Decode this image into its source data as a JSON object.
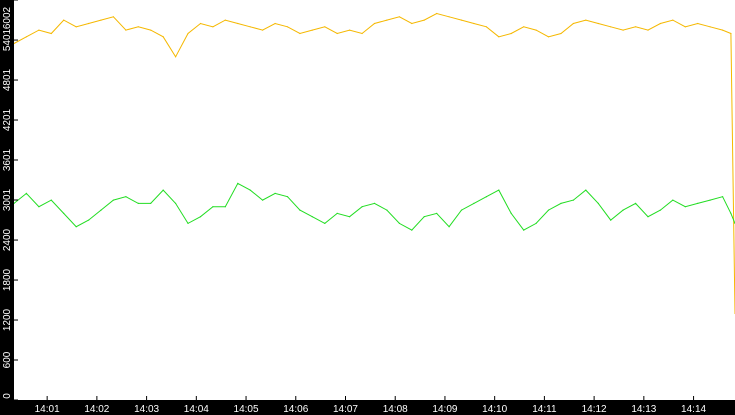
{
  "chart_data": {
    "type": "line",
    "title": "",
    "xlabel": "",
    "ylabel": "",
    "background": "#ffffff",
    "axis_color": "#000000",
    "label_color": "#ffffff",
    "x_range": [
      "14:00:20",
      "14:14:50"
    ],
    "ylim": [
      0,
      6002
    ],
    "y_ticks": [
      {
        "value": 0,
        "label": "0"
      },
      {
        "value": 600,
        "label": "600"
      },
      {
        "value": 1200,
        "label": "1200"
      },
      {
        "value": 1800,
        "label": "1800"
      },
      {
        "value": 2400,
        "label": "2400"
      },
      {
        "value": 3001,
        "label": "3001"
      },
      {
        "value": 3601,
        "label": "3601"
      },
      {
        "value": 4201,
        "label": "4201"
      },
      {
        "value": 4801,
        "label": "4801"
      },
      {
        "value": 5401,
        "label": "5401"
      },
      {
        "value": 6002,
        "label": "6002"
      }
    ],
    "x_ticks": [
      {
        "value": "14:01",
        "label": "14:01"
      },
      {
        "value": "14:02",
        "label": "14:02"
      },
      {
        "value": "14:03",
        "label": "14:03"
      },
      {
        "value": "14:04",
        "label": "14:04"
      },
      {
        "value": "14:05",
        "label": "14:05"
      },
      {
        "value": "14:06",
        "label": "14:06"
      },
      {
        "value": "14:07",
        "label": "14:07"
      },
      {
        "value": "14:08",
        "label": "14:08"
      },
      {
        "value": "14:09",
        "label": "14:09"
      },
      {
        "value": "14:10",
        "label": "14:10"
      },
      {
        "value": "14:11",
        "label": "14:11"
      },
      {
        "value": "14:12",
        "label": "14:12"
      },
      {
        "value": "14:13",
        "label": "14:13"
      },
      {
        "value": "14:14",
        "label": "14:14"
      }
    ],
    "series": [
      {
        "color": "#f5b800",
        "points": [
          [
            "14:00:20",
            5350
          ],
          [
            "14:00:35",
            5450
          ],
          [
            "14:00:50",
            5550
          ],
          [
            "14:01:05",
            5500
          ],
          [
            "14:01:20",
            5700
          ],
          [
            "14:01:35",
            5600
          ],
          [
            "14:01:50",
            5650
          ],
          [
            "14:02:05",
            5700
          ],
          [
            "14:02:20",
            5750
          ],
          [
            "14:02:35",
            5550
          ],
          [
            "14:02:50",
            5600
          ],
          [
            "14:03:05",
            5550
          ],
          [
            "14:03:20",
            5450
          ],
          [
            "14:03:35",
            5150
          ],
          [
            "14:03:50",
            5500
          ],
          [
            "14:04:05",
            5650
          ],
          [
            "14:04:20",
            5600
          ],
          [
            "14:04:35",
            5700
          ],
          [
            "14:04:50",
            5650
          ],
          [
            "14:05:05",
            5600
          ],
          [
            "14:05:20",
            5550
          ],
          [
            "14:05:35",
            5650
          ],
          [
            "14:05:50",
            5600
          ],
          [
            "14:06:05",
            5500
          ],
          [
            "14:06:20",
            5550
          ],
          [
            "14:06:35",
            5600
          ],
          [
            "14:06:50",
            5500
          ],
          [
            "14:07:05",
            5550
          ],
          [
            "14:07:20",
            5500
          ],
          [
            "14:07:35",
            5650
          ],
          [
            "14:07:50",
            5700
          ],
          [
            "14:08:05",
            5750
          ],
          [
            "14:08:20",
            5650
          ],
          [
            "14:08:35",
            5700
          ],
          [
            "14:08:50",
            5800
          ],
          [
            "14:09:05",
            5750
          ],
          [
            "14:09:20",
            5700
          ],
          [
            "14:09:35",
            5650
          ],
          [
            "14:09:50",
            5600
          ],
          [
            "14:10:05",
            5450
          ],
          [
            "14:10:20",
            5500
          ],
          [
            "14:10:35",
            5600
          ],
          [
            "14:10:50",
            5550
          ],
          [
            "14:11:05",
            5450
          ],
          [
            "14:11:20",
            5500
          ],
          [
            "14:11:35",
            5650
          ],
          [
            "14:11:50",
            5700
          ],
          [
            "14:12:05",
            5650
          ],
          [
            "14:12:20",
            5600
          ],
          [
            "14:12:35",
            5550
          ],
          [
            "14:12:50",
            5600
          ],
          [
            "14:13:05",
            5550
          ],
          [
            "14:13:20",
            5650
          ],
          [
            "14:13:35",
            5700
          ],
          [
            "14:13:50",
            5600
          ],
          [
            "14:14:05",
            5650
          ],
          [
            "14:14:20",
            5600
          ],
          [
            "14:14:35",
            5550
          ],
          [
            "14:14:45",
            5500
          ],
          [
            "14:14:50",
            1300
          ]
        ]
      },
      {
        "color": "#22dd22",
        "points": [
          [
            "14:00:20",
            2950
          ],
          [
            "14:00:35",
            3100
          ],
          [
            "14:00:50",
            2900
          ],
          [
            "14:01:05",
            3000
          ],
          [
            "14:01:20",
            2800
          ],
          [
            "14:01:35",
            2600
          ],
          [
            "14:01:50",
            2700
          ],
          [
            "14:02:05",
            2850
          ],
          [
            "14:02:20",
            3000
          ],
          [
            "14:02:35",
            3050
          ],
          [
            "14:02:50",
            2950
          ],
          [
            "14:03:05",
            2950
          ],
          [
            "14:03:20",
            3150
          ],
          [
            "14:03:35",
            2950
          ],
          [
            "14:03:50",
            2650
          ],
          [
            "14:04:05",
            2750
          ],
          [
            "14:04:20",
            2900
          ],
          [
            "14:04:35",
            2900
          ],
          [
            "14:04:50",
            3250
          ],
          [
            "14:05:05",
            3150
          ],
          [
            "14:05:20",
            3000
          ],
          [
            "14:05:35",
            3100
          ],
          [
            "14:05:50",
            3050
          ],
          [
            "14:06:05",
            2850
          ],
          [
            "14:06:20",
            2750
          ],
          [
            "14:06:35",
            2650
          ],
          [
            "14:06:50",
            2800
          ],
          [
            "14:07:05",
            2750
          ],
          [
            "14:07:20",
            2900
          ],
          [
            "14:07:35",
            2950
          ],
          [
            "14:07:50",
            2850
          ],
          [
            "14:08:05",
            2650
          ],
          [
            "14:08:20",
            2550
          ],
          [
            "14:08:35",
            2750
          ],
          [
            "14:08:50",
            2800
          ],
          [
            "14:09:05",
            2600
          ],
          [
            "14:09:20",
            2850
          ],
          [
            "14:09:35",
            2950
          ],
          [
            "14:09:50",
            3050
          ],
          [
            "14:10:05",
            3150
          ],
          [
            "14:10:20",
            2800
          ],
          [
            "14:10:35",
            2550
          ],
          [
            "14:10:50",
            2650
          ],
          [
            "14:11:05",
            2850
          ],
          [
            "14:11:20",
            2950
          ],
          [
            "14:11:35",
            3000
          ],
          [
            "14:11:50",
            3150
          ],
          [
            "14:12:05",
            2950
          ],
          [
            "14:12:20",
            2700
          ],
          [
            "14:12:35",
            2850
          ],
          [
            "14:12:50",
            2950
          ],
          [
            "14:13:05",
            2750
          ],
          [
            "14:13:20",
            2850
          ],
          [
            "14:13:35",
            3000
          ],
          [
            "14:13:50",
            2900
          ],
          [
            "14:14:05",
            2950
          ],
          [
            "14:14:20",
            3000
          ],
          [
            "14:14:35",
            3050
          ],
          [
            "14:14:45",
            2800
          ],
          [
            "14:14:50",
            2650
          ]
        ]
      }
    ]
  }
}
